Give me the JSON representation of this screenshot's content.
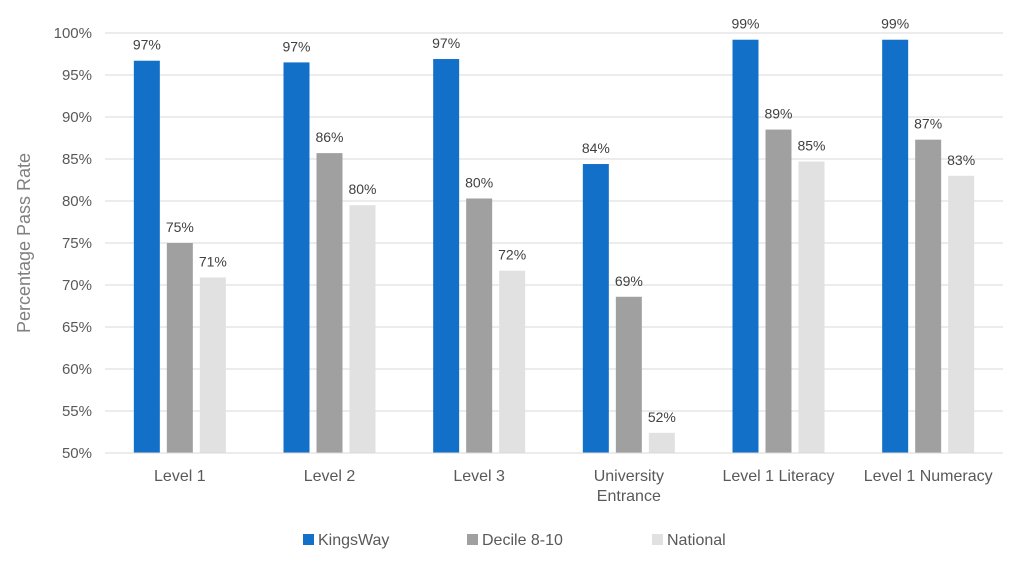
{
  "chart_data": {
    "type": "bar",
    "title": "",
    "xlabel": "",
    "ylabel": "Percentage Pass Rate",
    "ylim": [
      50,
      100
    ],
    "y_ticks": [
      "50%",
      "55%",
      "60%",
      "65%",
      "70%",
      "75%",
      "80%",
      "85%",
      "90%",
      "95%",
      "100%"
    ],
    "y_tick_values": [
      50,
      55,
      60,
      65,
      70,
      75,
      80,
      85,
      90,
      95,
      100
    ],
    "categories": [
      [
        "Level 1"
      ],
      [
        "Level 2"
      ],
      [
        "Level 3"
      ],
      [
        "University",
        "Entrance"
      ],
      [
        "Level 1 Literacy"
      ],
      [
        "Level 1 Numeracy"
      ]
    ],
    "series": [
      {
        "name": "KingsWay",
        "color": "#1270C8",
        "values": [
          96.7,
          96.5,
          96.9,
          84.4,
          99.2,
          99.2
        ],
        "labels": [
          "97%",
          "97%",
          "97%",
          "84%",
          "99%",
          "99%"
        ]
      },
      {
        "name": "Decile 8-10",
        "color": "#A0A0A0",
        "values": [
          75.0,
          85.7,
          80.3,
          68.6,
          88.5,
          87.3
        ],
        "labels": [
          "75%",
          "86%",
          "80%",
          "69%",
          "89%",
          "87%"
        ]
      },
      {
        "name": "National",
        "color": "#E1E1E1",
        "values": [
          70.9,
          79.5,
          71.7,
          52.4,
          84.7,
          83.0
        ],
        "labels": [
          "71%",
          "80%",
          "72%",
          "52%",
          "85%",
          "83%"
        ]
      }
    ],
    "grid": true,
    "legend_position": "bottom"
  }
}
